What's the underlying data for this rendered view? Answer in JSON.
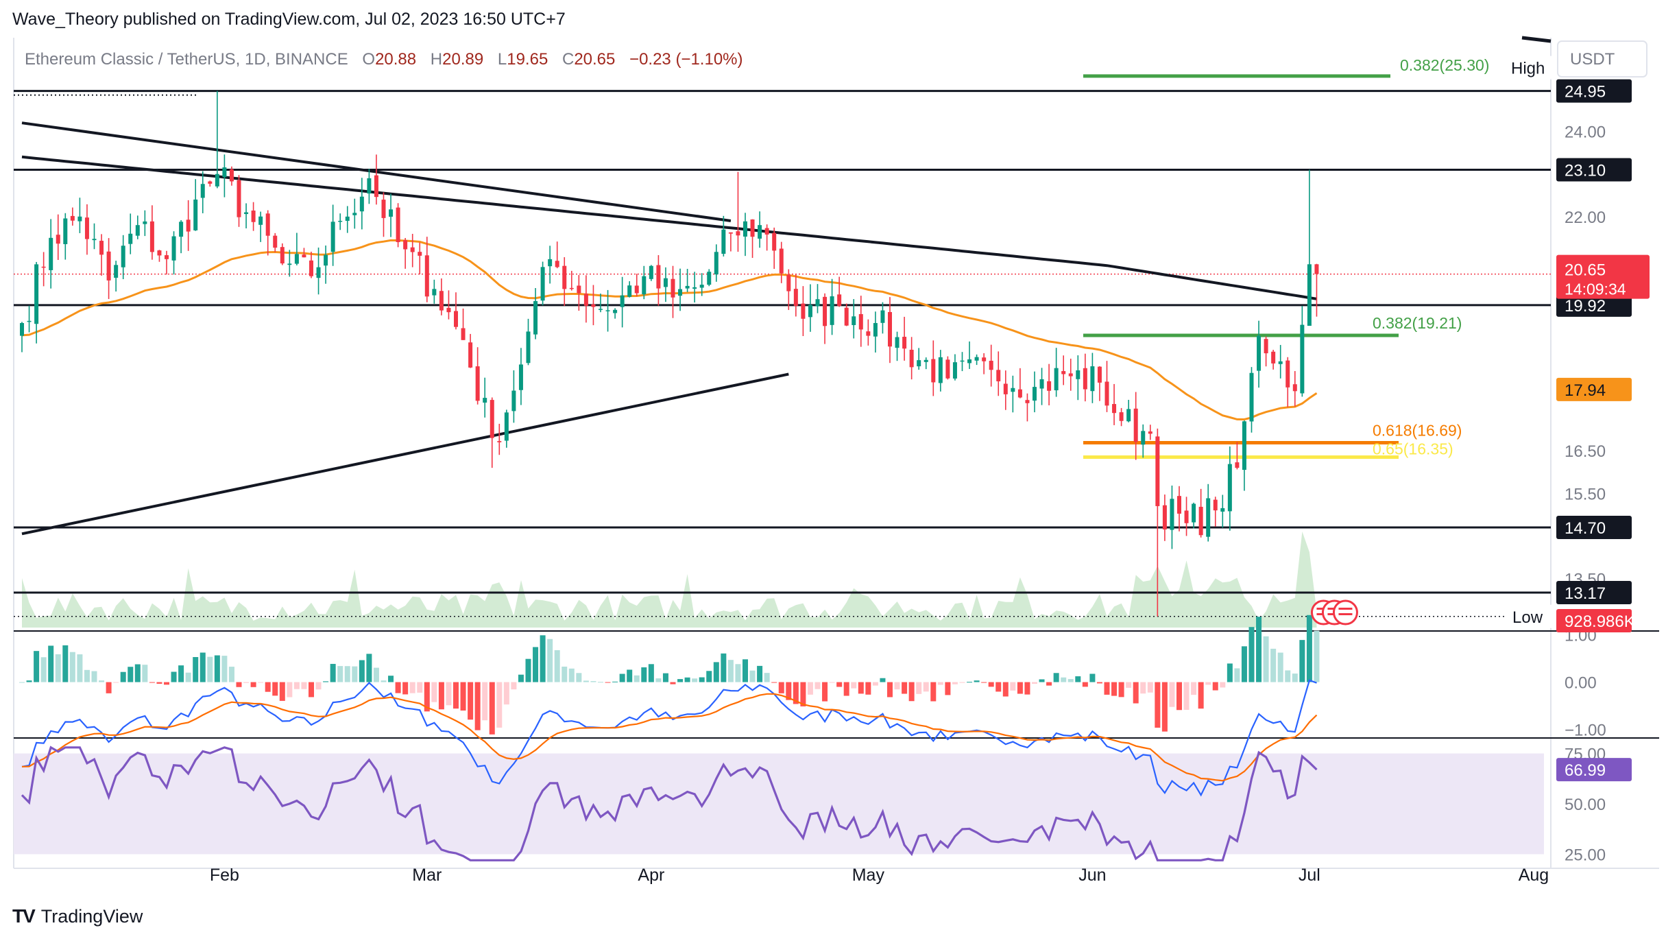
{
  "header": {
    "published": "Wave_Theory published on TradingView.com, Jul 02, 2023 16:50 UTC+7"
  },
  "symbol": {
    "name": "Ethereum Classic / TetherUS, 1D, BINANCE",
    "o_label": "O",
    "o": "20.88",
    "h_label": "H",
    "h": "20.89",
    "l_label": "L",
    "l": "19.65",
    "c_label": "C",
    "c": "20.65",
    "change": "−0.23 (−1.10%)"
  },
  "currency_button": "USDT",
  "footer": {
    "brand": "TradingView",
    "logo": "TV"
  },
  "colors": {
    "up": "#089981",
    "down": "#f23645",
    "ema50": "#f7931a",
    "ma200": "#131722",
    "fib_green": "#43a047",
    "fib_orange": "#f57c00",
    "fib_yellow": "#fbe94a",
    "macd": "#2962ff",
    "signal": "#ff6d00",
    "rsi": "#7e57c2",
    "rsi_band": "#ede7f6"
  },
  "chart_data": {
    "type": "candlestick",
    "price_axis": {
      "ticks": [
        "24.00",
        "22.00",
        "16.50",
        "15.50",
        "13.50"
      ],
      "range": [
        12.3,
        26.2
      ]
    },
    "x_axis": {
      "months": [
        "Feb",
        "Mar",
        "Apr",
        "May",
        "Jun",
        "Jul",
        "Aug"
      ]
    },
    "high_low": {
      "high_label": "High",
      "high": "24.95",
      "low_label": "Low",
      "low": "12.61"
    },
    "horizontal_levels": [
      "24.95",
      "23.10",
      "19.92",
      "14.70",
      "13.17"
    ],
    "current_price": {
      "value": "20.65",
      "countdown": "14:09:34"
    },
    "ema_value": "17.94",
    "fibonacci": [
      {
        "label": "0.382(25.30)",
        "value": 25.3,
        "color": "#43a047"
      },
      {
        "label": "0.382(19.21)",
        "value": 19.21,
        "color": "#43a047"
      },
      {
        "label": "0.618(16.69)",
        "value": 16.69,
        "color": "#f57c00"
      },
      {
        "label": "0.65(16.35)",
        "value": 16.35,
        "color": "#fbe94a"
      }
    ],
    "trendlines": [
      {
        "from": [
          "2023-01-04",
          24.2
        ],
        "to": [
          "2023-04-12",
          21.9
        ]
      },
      {
        "from": [
          "2023-01-04",
          14.55
        ],
        "to": [
          "2023-04-20",
          18.3
        ]
      }
    ],
    "volume_value": "928.986K",
    "macd": {
      "ticks": [
        "1.00",
        "0.00",
        "−1.00"
      ],
      "range": [
        -1.15,
        1.05
      ]
    },
    "rsi": {
      "ticks": [
        "75.00",
        "50.00",
        "25.00"
      ],
      "value": "66.99",
      "range": [
        18,
        82
      ]
    },
    "anchors": [
      [
        "2023-01-04",
        19.5
      ],
      [
        "2023-01-08",
        21.5
      ],
      [
        "2023-01-12",
        22.0
      ],
      [
        "2023-01-16",
        20.5
      ],
      [
        "2023-01-20",
        21.8
      ],
      [
        "2023-01-24",
        21.0
      ],
      [
        "2023-01-28",
        22.4
      ],
      [
        "2023-01-31",
        23.0
      ],
      [
        "2023-02-04",
        22.1
      ],
      [
        "2023-02-09",
        20.9
      ],
      [
        "2023-02-13",
        20.6
      ],
      [
        "2023-02-17",
        21.9
      ],
      [
        "2023-02-21",
        22.9
      ],
      [
        "2023-02-25",
        21.4
      ],
      [
        "2023-03-02",
        20.3
      ],
      [
        "2023-03-06",
        19.1
      ],
      [
        "2023-03-10",
        16.8
      ],
      [
        "2023-03-12",
        17.4
      ],
      [
        "2023-03-15",
        19.3
      ],
      [
        "2023-03-18",
        21.0
      ],
      [
        "2023-03-22",
        20.2
      ],
      [
        "2023-03-26",
        19.8
      ],
      [
        "2023-03-31",
        20.6
      ],
      [
        "2023-04-04",
        20.1
      ],
      [
        "2023-04-08",
        20.4
      ],
      [
        "2023-04-12",
        21.6
      ],
      [
        "2023-04-16",
        21.8
      ],
      [
        "2023-04-18",
        21.2
      ],
      [
        "2023-04-22",
        19.6
      ],
      [
        "2023-04-27",
        19.9
      ],
      [
        "2023-05-02",
        19.5
      ],
      [
        "2023-05-06",
        18.9
      ],
      [
        "2023-05-12",
        18.2
      ],
      [
        "2023-05-18",
        18.4
      ],
      [
        "2023-05-24",
        18.0
      ],
      [
        "2023-05-28",
        18.3
      ],
      [
        "2023-06-02",
        18.1
      ],
      [
        "2023-06-05",
        17.2
      ],
      [
        "2023-06-09",
        16.9
      ],
      [
        "2023-06-10",
        15.2
      ],
      [
        "2023-06-14",
        14.8
      ],
      [
        "2023-06-18",
        15.1
      ],
      [
        "2023-06-21",
        16.1
      ],
      [
        "2023-06-24",
        19.2
      ],
      [
        "2023-06-27",
        18.6
      ],
      [
        "2023-06-29",
        17.9
      ],
      [
        "2023-07-01",
        20.9
      ],
      [
        "2023-07-02",
        20.65
      ]
    ]
  }
}
